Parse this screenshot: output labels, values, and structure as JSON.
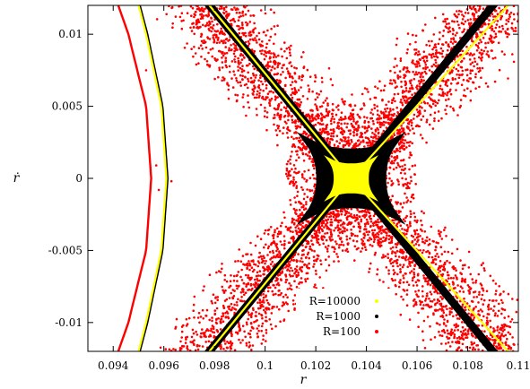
{
  "chart_data": {
    "type": "scatter",
    "title": "",
    "xlabel": "r",
    "ylabel": "ṙ",
    "xlim": [
      0.093,
      0.11
    ],
    "ylim": [
      -0.012,
      0.012
    ],
    "x_ticks": [
      0.094,
      0.096,
      0.098,
      0.1,
      0.102,
      0.104,
      0.106,
      0.108,
      0.11
    ],
    "x_tick_labels": [
      "0.094",
      "0.096",
      "0.098",
      "0.1",
      "0.102",
      "0.104",
      "0.106",
      "0.108",
      "0.11"
    ],
    "y_ticks": [
      -0.01,
      -0.005,
      0,
      0.005,
      0.01
    ],
    "y_tick_labels": [
      "-0.01",
      "-0.005",
      "0",
      "0.005",
      "0.01"
    ],
    "grid": false,
    "legend_position": "bottom-center",
    "saddle_point": [
      0.1034,
      0.0
    ],
    "series": [
      {
        "name": "R=10000",
        "color": "#ffff00",
        "outer_curve": [
          [
            0.0961,
            0.0
          ],
          [
            0.0959,
            0.005
          ],
          [
            0.0953,
            0.01
          ],
          [
            0.095,
            0.012
          ]
        ],
        "separatrix_upper": [
          [
            0.0978,
            0.012
          ],
          [
            0.1034,
            0.0
          ],
          [
            0.1096,
            -0.012
          ]
        ],
        "separatrix_lower": [
          [
            0.0978,
            -0.012
          ],
          [
            0.1034,
            0.0
          ],
          [
            0.1096,
            0.012
          ]
        ],
        "core_halfwidth": [
          0.0008,
          0.0012
        ]
      },
      {
        "name": "R=1000",
        "color": "#000000",
        "outer_curve": [
          [
            0.0961,
            0.0
          ],
          [
            0.0959,
            0.005
          ],
          [
            0.0953,
            0.01
          ],
          [
            0.095,
            0.012
          ]
        ],
        "band_halfwidth": 0.0002,
        "core_halfwidth": [
          0.0016,
          0.0024
        ]
      },
      {
        "name": "R=100",
        "color": "#ff0000",
        "outer_curve": [
          [
            0.0955,
            0.0
          ],
          [
            0.0953,
            0.005
          ],
          [
            0.0946,
            0.01
          ],
          [
            0.0942,
            0.012
          ]
        ],
        "scatter_band": [
          {
            "y": 0.0,
            "halfwidth": 0.0009
          },
          {
            "y": 0.004,
            "halfwidth": 0.0023
          },
          {
            "y": 0.008,
            "halfwidth": 0.0028
          },
          {
            "y": 0.012,
            "halfwidth": 0.0024
          }
        ]
      }
    ]
  }
}
